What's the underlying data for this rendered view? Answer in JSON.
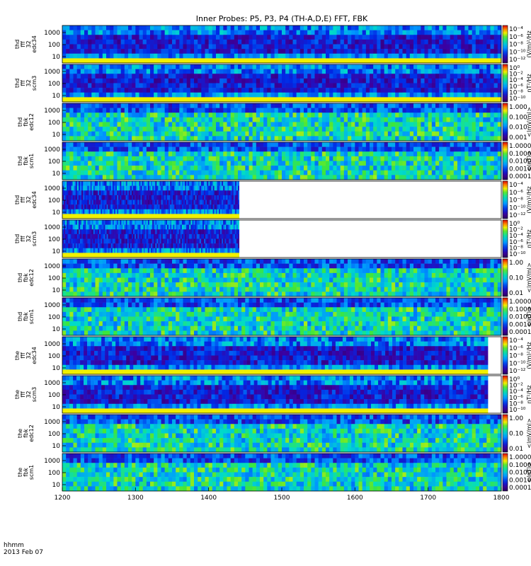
{
  "chart_data": {
    "type": "heatmap",
    "title": "Inner Probes: P5, P3, P4 (TH-A,D,E) FFT, FBK",
    "x_ticks": [
      "1200",
      "1300",
      "1400",
      "1500",
      "1600",
      "1700",
      "1800"
    ],
    "xlim": [
      1200,
      1800
    ],
    "x_time_label": "hhmm",
    "date_label": "2013 Feb 07",
    "panels": [
      {
        "label": [
          "thd",
          "fff",
          "32",
          "edc34"
        ],
        "y_ticks": [
          "1000",
          "100",
          "10"
        ],
        "ylog": true,
        "cb_ticks": [
          "10⁻⁴",
          "10⁻⁶",
          "10⁻⁸",
          "10⁻¹⁰",
          "10⁻¹²"
        ],
        "cb_label": "(V/m)²/Hz",
        "end": 1800,
        "kind": "fff"
      },
      {
        "label": [
          "thd",
          "fff",
          "32",
          "scm3"
        ],
        "y_ticks": [
          "1000",
          "100",
          "10"
        ],
        "ylog": true,
        "cb_ticks": [
          "10⁰",
          "10⁻²",
          "10⁻⁴",
          "10⁻⁶",
          "10⁻⁸",
          "10⁻¹⁰"
        ],
        "cb_label": "nT²/Hz",
        "end": 1800,
        "kind": "fff"
      },
      {
        "label": [
          "thd",
          "fbk",
          "edc12"
        ],
        "y_ticks": [
          "1000",
          "100",
          "10"
        ],
        "ylog": true,
        "cb_ticks": [
          "1.000",
          "0.100",
          "0.010",
          "0.001"
        ],
        "cb_label": "<|mV/m|>",
        "end": 1800,
        "kind": "fbk"
      },
      {
        "label": [
          "thd",
          "fbk",
          "scm1"
        ],
        "y_ticks": [
          "1000",
          "100",
          "10"
        ],
        "ylog": true,
        "cb_ticks": [
          "1.0000",
          "0.1000",
          "0.0100",
          "0.0010",
          "0.0001"
        ],
        "cb_label": "<|nT|>",
        "end": 1800,
        "kind": "fbk"
      },
      {
        "label": [
          "thd",
          "fff",
          "32",
          "edc34"
        ],
        "y_ticks": [
          "1000",
          "100",
          "10"
        ],
        "ylog": true,
        "cb_ticks": [
          "10⁻⁴",
          "10⁻⁶",
          "10⁻⁸",
          "10⁻¹⁰",
          "10⁻¹²"
        ],
        "cb_label": "(V/m)²/Hz",
        "end": 1442,
        "kind": "fff"
      },
      {
        "label": [
          "thd",
          "fff",
          "32",
          "scm3"
        ],
        "y_ticks": [
          "1000",
          "100",
          "10"
        ],
        "ylog": true,
        "cb_ticks": [
          "10⁰",
          "10⁻²",
          "10⁻⁴",
          "10⁻⁶",
          "10⁻⁸",
          "10⁻¹⁰"
        ],
        "cb_label": "nT²/Hz",
        "end": 1442,
        "kind": "fff"
      },
      {
        "label": [
          "thd",
          "fbk",
          "edc12"
        ],
        "y_ticks": [
          "1000",
          "100",
          "10"
        ],
        "ylog": true,
        "cb_ticks": [
          "1.00",
          "0.10",
          "0.01"
        ],
        "cb_label": "<|mV/m|>",
        "end": 1800,
        "kind": "fbk"
      },
      {
        "label": [
          "thd",
          "fbk",
          "scm1"
        ],
        "y_ticks": [
          "1000",
          "100",
          "10"
        ],
        "ylog": true,
        "cb_ticks": [
          "1.0000",
          "0.1000",
          "0.0100",
          "0.0010",
          "0.0001"
        ],
        "cb_label": "<|nT|>",
        "end": 1800,
        "kind": "fbk"
      },
      {
        "label": [
          "the",
          "fff",
          "32",
          "edc34"
        ],
        "y_ticks": [
          "1000",
          "100",
          "10"
        ],
        "ylog": true,
        "cb_ticks": [
          "10⁻⁴",
          "10⁻⁶",
          "10⁻⁸",
          "10⁻¹⁰",
          "10⁻¹²"
        ],
        "cb_label": "(V/m)²/Hz",
        "end": 1782,
        "kind": "fff"
      },
      {
        "label": [
          "the",
          "fff",
          "32",
          "scm3"
        ],
        "y_ticks": [
          "1000",
          "100",
          "10"
        ],
        "ylog": true,
        "cb_ticks": [
          "10⁰",
          "10⁻²",
          "10⁻⁴",
          "10⁻⁶",
          "10⁻⁸",
          "10⁻¹⁰"
        ],
        "cb_label": "nT²/Hz",
        "end": 1782,
        "kind": "fff"
      },
      {
        "label": [
          "the",
          "fbk",
          "edc12"
        ],
        "y_ticks": [
          "1000",
          "100",
          "10"
        ],
        "ylog": true,
        "cb_ticks": [
          "1.00",
          "0.10",
          "0.01"
        ],
        "cb_label": "<|mV/m|>",
        "end": 1800,
        "kind": "fbk"
      },
      {
        "label": [
          "the",
          "fbk",
          "scm1"
        ],
        "y_ticks": [
          "1000",
          "100",
          "10"
        ],
        "ylog": true,
        "cb_ticks": [
          "1.0000",
          "0.1000",
          "0.0100",
          "0.0010",
          "0.0001"
        ],
        "cb_label": "<|nT|>",
        "end": 1800,
        "kind": "fbk"
      }
    ]
  }
}
